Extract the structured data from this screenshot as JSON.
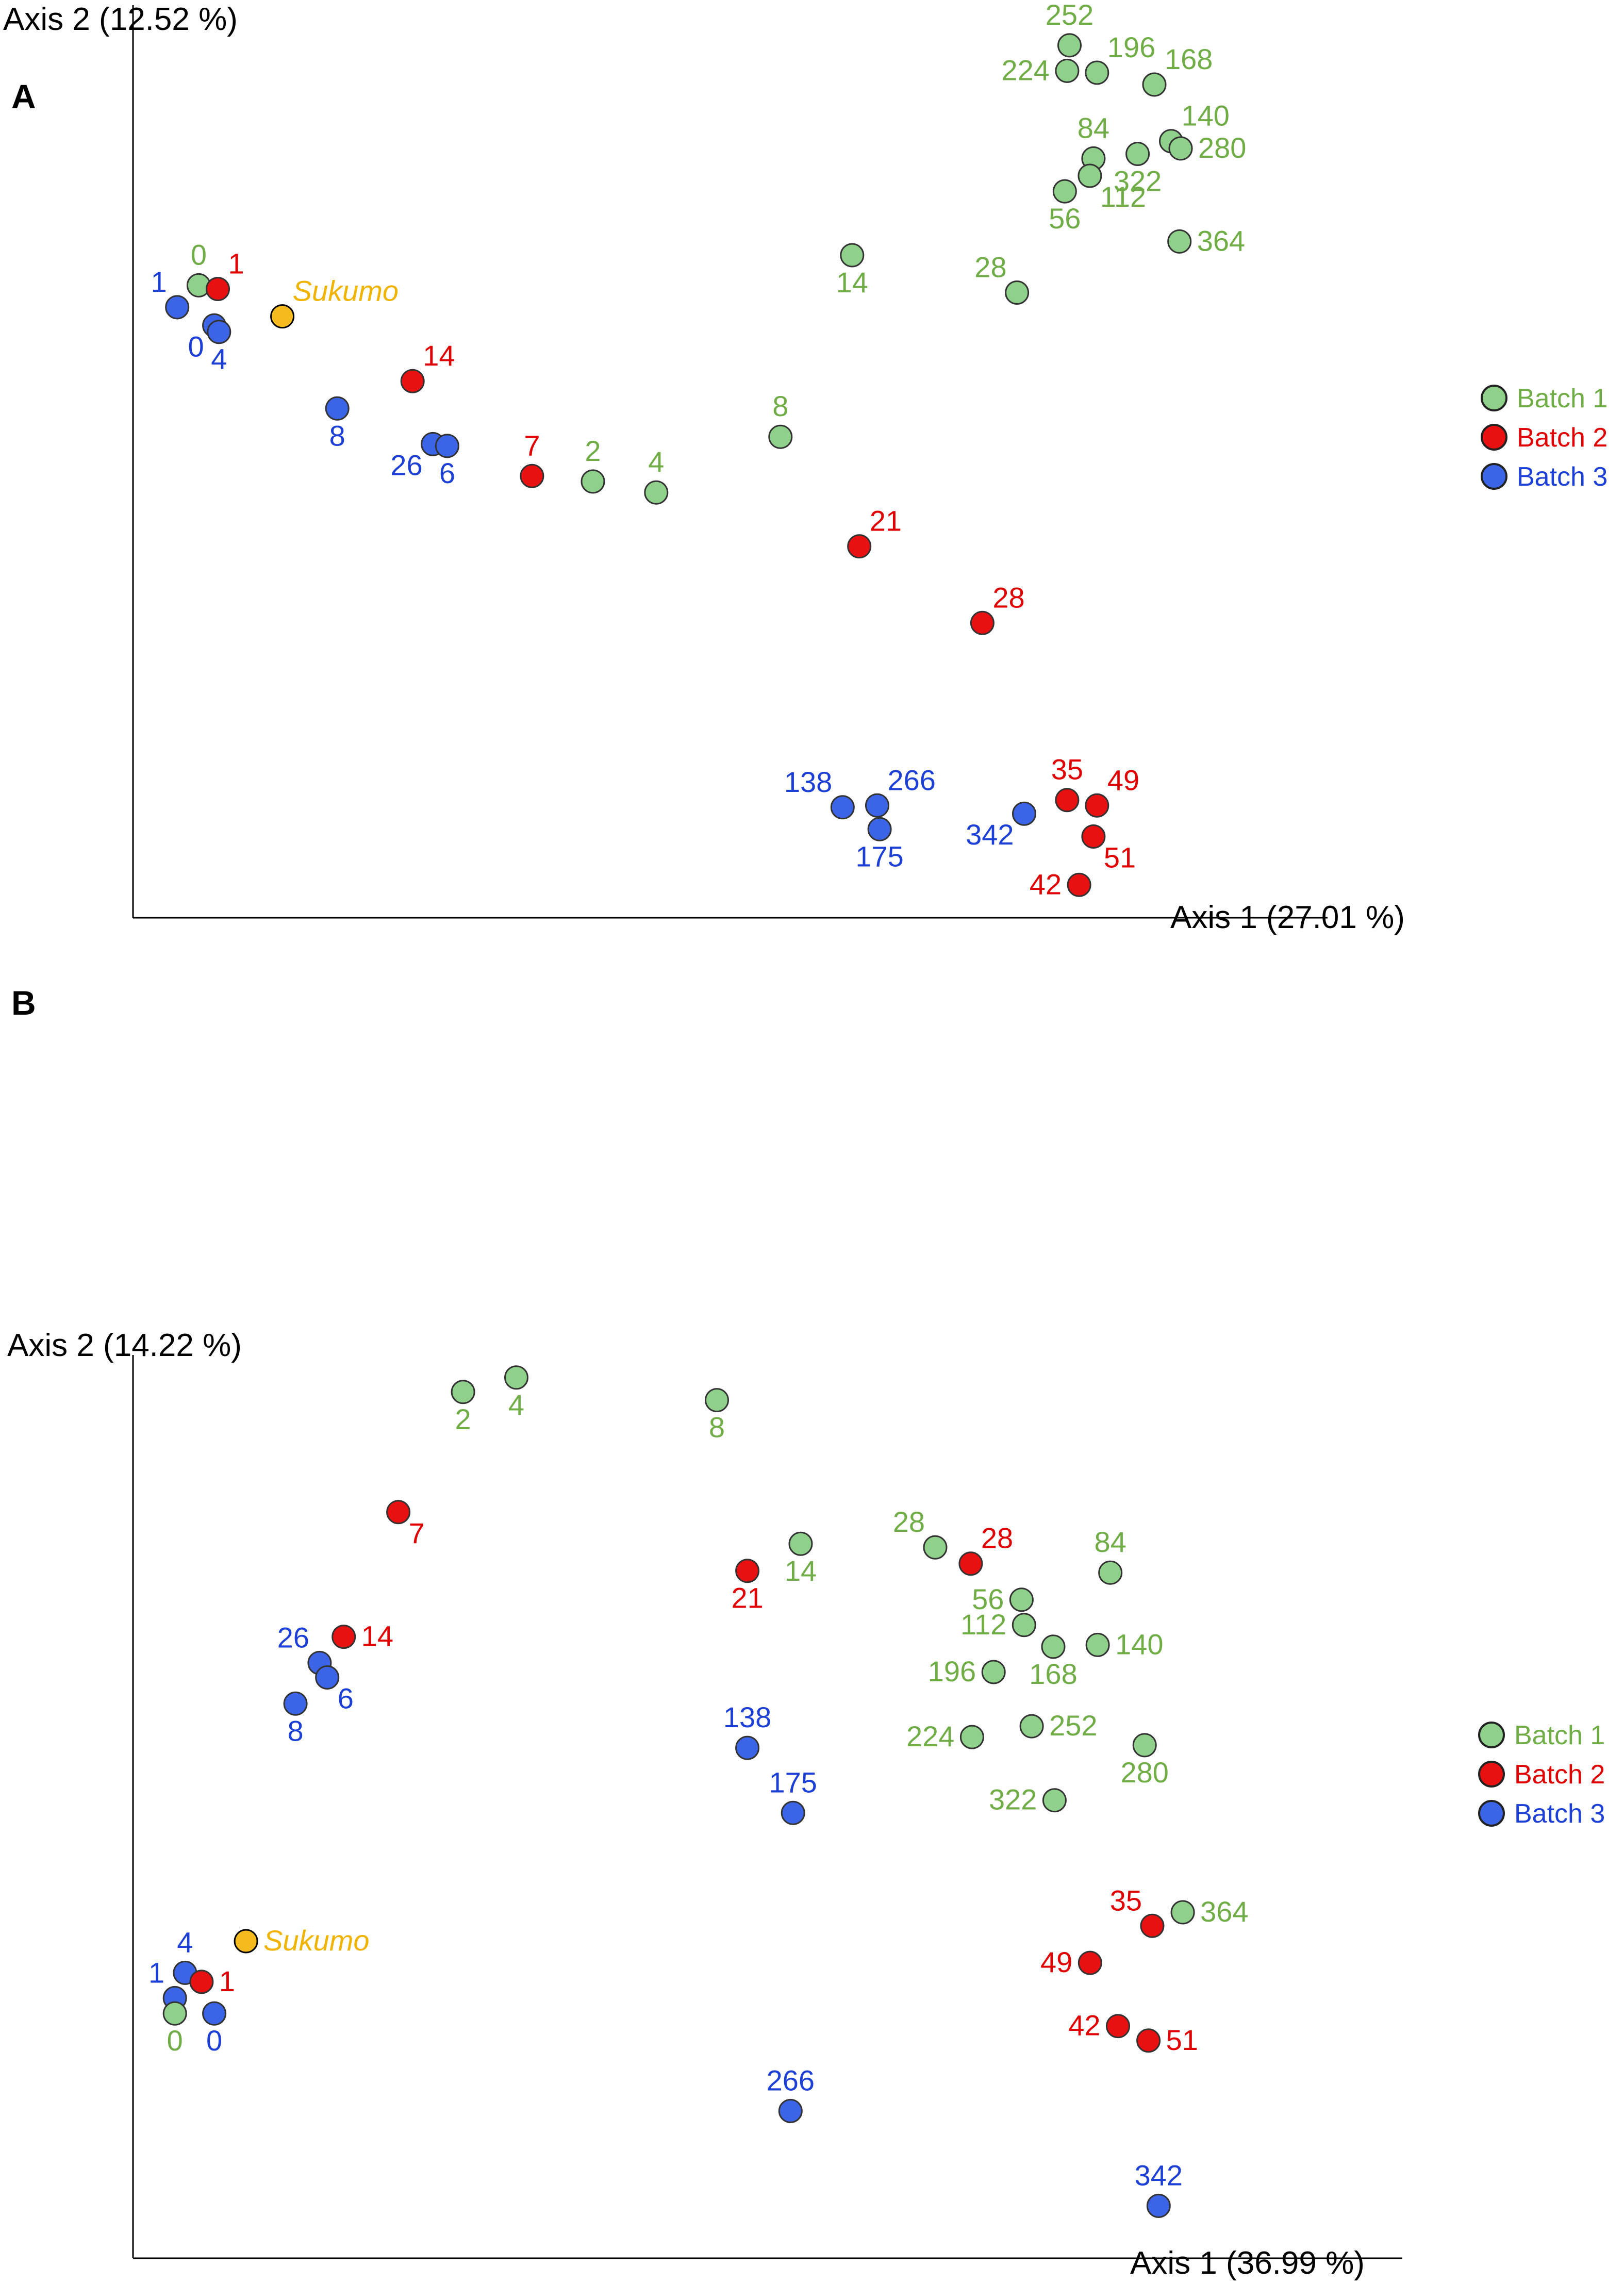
{
  "colors": {
    "batch1": "#70ad47",
    "batch1_fill": "#8fd18a",
    "batch2": "#e00000",
    "batch2_fill": "#e81010",
    "batch3": "#1c3fd6",
    "batch3_fill": "#3c64e6",
    "sukumo": "#f0b400",
    "sukumo_fill": "#f5bb1e",
    "axis": "#000000"
  },
  "legend": [
    {
      "name": "Batch 1",
      "group": "batch1"
    },
    {
      "name": "Batch 2",
      "group": "batch2"
    },
    {
      "name": "Batch 3",
      "group": "batch3"
    }
  ],
  "chart_data": [
    {
      "panel": "A",
      "type": "scatter",
      "xlabel": "Axis 1 (27.01 %)",
      "ylabel": "Axis 2 (12.52 %)",
      "xlim": [
        0,
        100
      ],
      "ylim": [
        0,
        100
      ],
      "legend_position": "right",
      "points": [
        {
          "label": "0",
          "group": "batch1",
          "x": 5.5,
          "y": 69.3,
          "lpos": "n"
        },
        {
          "label": "1",
          "group": "batch2",
          "x": 7.1,
          "y": 68.9,
          "lpos": "ne"
        },
        {
          "label": "1",
          "group": "batch3",
          "x": 3.7,
          "y": 66.9,
          "lpos": "nw"
        },
        {
          "label": "0",
          "group": "batch3",
          "x": 6.8,
          "y": 64.9,
          "lpos": "sw"
        },
        {
          "label": "4",
          "group": "batch3",
          "x": 7.2,
          "y": 64.2,
          "lpos": "s"
        },
        {
          "label": "Sukumo",
          "group": "sukumo",
          "x": 12.5,
          "y": 65.9,
          "lpos": "ne",
          "italic": true
        },
        {
          "label": "14",
          "group": "batch2",
          "x": 23.4,
          "y": 58.8,
          "lpos": "ne"
        },
        {
          "label": "8",
          "group": "batch3",
          "x": 17.1,
          "y": 55.8,
          "lpos": "s"
        },
        {
          "label": "26",
          "group": "batch3",
          "x": 25.1,
          "y": 51.9,
          "lpos": "sw"
        },
        {
          "label": "6",
          "group": "batch3",
          "x": 26.3,
          "y": 51.7,
          "lpos": "s"
        },
        {
          "label": "7",
          "group": "batch2",
          "x": 33.4,
          "y": 48.4,
          "lpos": "n"
        },
        {
          "label": "2",
          "group": "batch1",
          "x": 38.5,
          "y": 47.8,
          "lpos": "n"
        },
        {
          "label": "4",
          "group": "batch1",
          "x": 43.8,
          "y": 46.6,
          "lpos": "n"
        },
        {
          "label": "8",
          "group": "batch1",
          "x": 54.2,
          "y": 52.7,
          "lpos": "n"
        },
        {
          "label": "14",
          "group": "batch1",
          "x": 60.2,
          "y": 72.6,
          "lpos": "s"
        },
        {
          "label": "28",
          "group": "batch1",
          "x": 74.0,
          "y": 68.5,
          "lpos": "nw"
        },
        {
          "label": "21",
          "group": "batch2",
          "x": 60.8,
          "y": 40.7,
          "lpos": "ne"
        },
        {
          "label": "28",
          "group": "batch2",
          "x": 71.1,
          "y": 32.3,
          "lpos": "ne"
        },
        {
          "label": "138",
          "group": "batch3",
          "x": 59.4,
          "y": 12.1,
          "lpos": "nw"
        },
        {
          "label": "266",
          "group": "batch3",
          "x": 62.3,
          "y": 12.3,
          "lpos": "ne"
        },
        {
          "label": "175",
          "group": "batch3",
          "x": 62.5,
          "y": 9.7,
          "lpos": "s"
        },
        {
          "label": "342",
          "group": "batch3",
          "x": 74.6,
          "y": 11.4,
          "lpos": "sw"
        },
        {
          "label": "35",
          "group": "batch2",
          "x": 78.2,
          "y": 12.9,
          "lpos": "n"
        },
        {
          "label": "49",
          "group": "batch2",
          "x": 80.7,
          "y": 12.3,
          "lpos": "ne"
        },
        {
          "label": "51",
          "group": "batch2",
          "x": 80.4,
          "y": 8.9,
          "lpos": "se"
        },
        {
          "label": "42",
          "group": "batch2",
          "x": 79.2,
          "y": 3.6,
          "lpos": "w"
        },
        {
          "label": "252",
          "group": "batch1",
          "x": 78.4,
          "y": 95.6,
          "lpos": "n"
        },
        {
          "label": "196",
          "group": "batch1",
          "x": 80.7,
          "y": 92.6,
          "lpos": "ne"
        },
        {
          "label": "224",
          "group": "batch1",
          "x": 78.2,
          "y": 92.8,
          "lpos": "w"
        },
        {
          "label": "168",
          "group": "batch1",
          "x": 85.5,
          "y": 91.3,
          "lpos": "ne"
        },
        {
          "label": "84",
          "group": "batch1",
          "x": 80.4,
          "y": 83.2,
          "lpos": "n"
        },
        {
          "label": "140",
          "group": "batch1",
          "x": 86.9,
          "y": 85.1,
          "lpos": "ne"
        },
        {
          "label": "280",
          "group": "batch1",
          "x": 87.7,
          "y": 84.3,
          "lpos": "e"
        },
        {
          "label": "322",
          "group": "batch1",
          "x": 84.1,
          "y": 83.7,
          "lpos": "s"
        },
        {
          "label": "112",
          "group": "batch1",
          "x": 80.1,
          "y": 81.3,
          "lpos": "se"
        },
        {
          "label": "56",
          "group": "batch1",
          "x": 78.0,
          "y": 79.6,
          "lpos": "s"
        },
        {
          "label": "364",
          "group": "batch1",
          "x": 87.6,
          "y": 74.1,
          "lpos": "e"
        }
      ]
    },
    {
      "panel": "B",
      "type": "scatter",
      "xlabel": "Axis 1 (36.99 %)",
      "ylabel": "Axis 2 (14.22 %)",
      "xlim": [
        0,
        100
      ],
      "ylim": [
        0,
        100
      ],
      "legend_position": "right",
      "points": [
        {
          "label": "2",
          "group": "batch1",
          "x": 26.0,
          "y": 95.9,
          "lpos": "s"
        },
        {
          "label": "4",
          "group": "batch1",
          "x": 30.2,
          "y": 97.5,
          "lpos": "s"
        },
        {
          "label": "8",
          "group": "batch1",
          "x": 46.0,
          "y": 95.0,
          "lpos": "s"
        },
        {
          "label": "7",
          "group": "batch2",
          "x": 20.9,
          "y": 82.6,
          "lpos": "se"
        },
        {
          "label": "14",
          "group": "batch2",
          "x": 16.6,
          "y": 68.8,
          "lpos": "e"
        },
        {
          "label": "26",
          "group": "batch3",
          "x": 14.7,
          "y": 65.9,
          "lpos": "nw"
        },
        {
          "label": "6",
          "group": "batch3",
          "x": 15.3,
          "y": 64.3,
          "lpos": "se"
        },
        {
          "label": "8",
          "group": "batch3",
          "x": 12.8,
          "y": 61.4,
          "lpos": "s"
        },
        {
          "label": "14",
          "group": "batch1",
          "x": 52.6,
          "y": 79.1,
          "lpos": "s"
        },
        {
          "label": "21",
          "group": "batch2",
          "x": 48.4,
          "y": 76.1,
          "lpos": "s"
        },
        {
          "label": "28",
          "group": "batch1",
          "x": 63.2,
          "y": 78.7,
          "lpos": "nw"
        },
        {
          "label": "28",
          "group": "batch2",
          "x": 66.0,
          "y": 76.9,
          "lpos": "ne"
        },
        {
          "label": "84",
          "group": "batch1",
          "x": 77.0,
          "y": 75.9,
          "lpos": "n"
        },
        {
          "label": "56",
          "group": "batch1",
          "x": 70.0,
          "y": 72.9,
          "lpos": "w"
        },
        {
          "label": "112",
          "group": "batch1",
          "x": 70.2,
          "y": 70.1,
          "lpos": "w"
        },
        {
          "label": "168",
          "group": "batch1",
          "x": 72.5,
          "y": 67.7,
          "lpos": "s"
        },
        {
          "label": "140",
          "group": "batch1",
          "x": 76.0,
          "y": 67.9,
          "lpos": "e"
        },
        {
          "label": "196",
          "group": "batch1",
          "x": 67.8,
          "y": 64.9,
          "lpos": "w"
        },
        {
          "label": "224",
          "group": "batch1",
          "x": 66.1,
          "y": 57.7,
          "lpos": "w"
        },
        {
          "label": "252",
          "group": "batch1",
          "x": 70.8,
          "y": 58.9,
          "lpos": "e"
        },
        {
          "label": "280",
          "group": "batch1",
          "x": 79.7,
          "y": 56.8,
          "lpos": "s"
        },
        {
          "label": "322",
          "group": "batch1",
          "x": 72.6,
          "y": 50.7,
          "lpos": "w"
        },
        {
          "label": "138",
          "group": "batch3",
          "x": 48.4,
          "y": 56.5,
          "lpos": "n"
        },
        {
          "label": "175",
          "group": "batch3",
          "x": 52.0,
          "y": 49.3,
          "lpos": "n"
        },
        {
          "label": "266",
          "group": "batch3",
          "x": 51.8,
          "y": 16.3,
          "lpos": "n"
        },
        {
          "label": "364",
          "group": "batch1",
          "x": 82.7,
          "y": 38.3,
          "lpos": "e"
        },
        {
          "label": "35",
          "group": "batch2",
          "x": 80.3,
          "y": 36.8,
          "lpos": "nw"
        },
        {
          "label": "49",
          "group": "batch2",
          "x": 75.4,
          "y": 32.7,
          "lpos": "w"
        },
        {
          "label": "42",
          "group": "batch2",
          "x": 77.6,
          "y": 25.7,
          "lpos": "w"
        },
        {
          "label": "51",
          "group": "batch2",
          "x": 80.0,
          "y": 24.1,
          "lpos": "e"
        },
        {
          "label": "342",
          "group": "batch3",
          "x": 80.8,
          "y": 5.8,
          "lpos": "n"
        },
        {
          "label": "Sukumo",
          "group": "sukumo",
          "x": 8.9,
          "y": 35.1,
          "lpos": "e",
          "italic": true
        },
        {
          "label": "4",
          "group": "batch3",
          "x": 4.1,
          "y": 31.6,
          "lpos": "n"
        },
        {
          "label": "1",
          "group": "batch2",
          "x": 5.4,
          "y": 30.6,
          "lpos": "e"
        },
        {
          "label": "1",
          "group": "batch3",
          "x": 3.3,
          "y": 28.8,
          "lpos": "nw"
        },
        {
          "label": "0",
          "group": "batch1",
          "x": 3.3,
          "y": 27.1,
          "lpos": "s"
        },
        {
          "label": "0",
          "group": "batch3",
          "x": 6.4,
          "y": 27.1,
          "lpos": "s"
        }
      ]
    }
  ]
}
